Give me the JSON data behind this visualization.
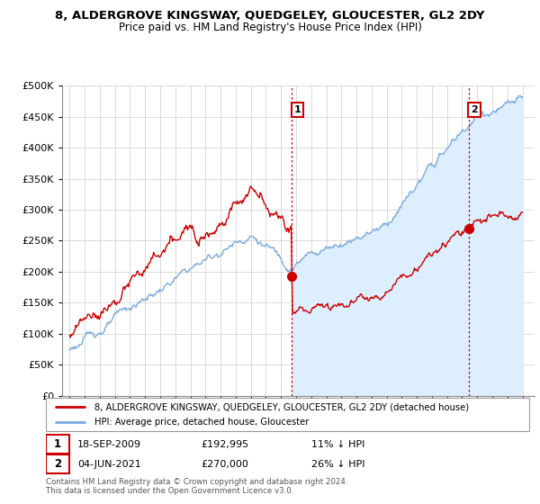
{
  "title": "8, ALDERGROVE KINGSWAY, QUEDGELEY, GLOUCESTER, GL2 2DY",
  "subtitle": "Price paid vs. HM Land Registry's House Price Index (HPI)",
  "hpi_label": "HPI: Average price, detached house, Gloucester",
  "property_label": "8, ALDERGROVE KINGSWAY, QUEDGELEY, GLOUCESTER, GL2 2DY (detached house)",
  "annotation1_date": "18-SEP-2009",
  "annotation1_price": "£192,995",
  "annotation1_hpi": "11% ↓ HPI",
  "annotation1_year": 2009.72,
  "annotation1_value": 192995,
  "annotation2_date": "04-JUN-2021",
  "annotation2_price": "£270,000",
  "annotation2_hpi": "26% ↓ HPI",
  "annotation2_year": 2021.42,
  "annotation2_value": 270000,
  "ylim": [
    0,
    500000
  ],
  "yticks": [
    0,
    50000,
    100000,
    150000,
    200000,
    250000,
    300000,
    350000,
    400000,
    450000,
    500000
  ],
  "hpi_color": "#7aaadd",
  "hpi_fill_color": "#ddeeff",
  "property_color": "#cc0000",
  "footer_text": "Contains HM Land Registry data © Crown copyright and database right 2024.\nThis data is licensed under the Open Government Licence v3.0.",
  "background_color": "#ffffff",
  "grid_color": "#cccccc"
}
